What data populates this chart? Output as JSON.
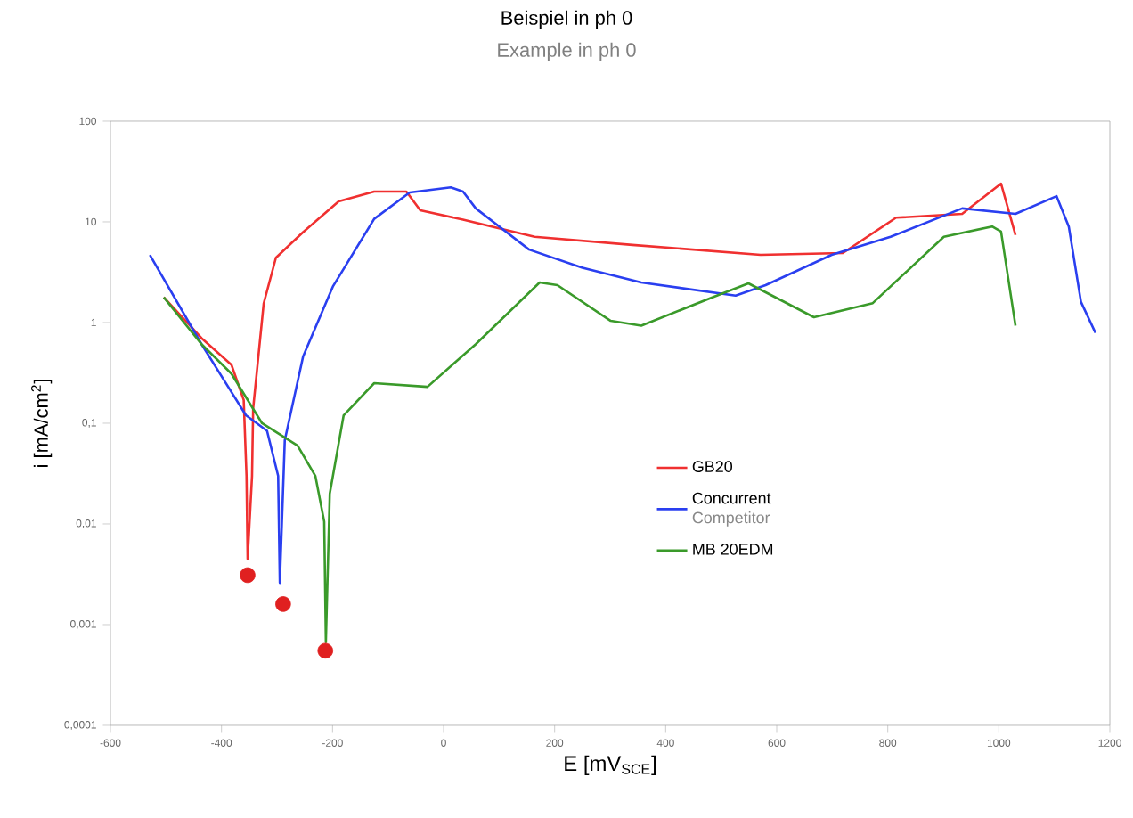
{
  "chart_data": {
    "type": "line",
    "title": "Beispiel in ph 0",
    "subtitle": "Example in ph 0",
    "xlabel": "E [mV$_{SCE}$]",
    "ylabel": "i [mA/cm$^{2}$]",
    "annotations": [
      "Competitor"
    ],
    "xlim": [
      -600,
      1200
    ],
    "xticks": [
      -600,
      -400,
      -200,
      0,
      200,
      400,
      600,
      800,
      1000,
      1200
    ],
    "ylim": [
      0.0001,
      100
    ],
    "yticks": [
      {
        "value": 0.0001,
        "label": "0,0001"
      },
      {
        "value": 0.001,
        "label": "0,001"
      },
      {
        "value": 0.01,
        "label": "0,01"
      },
      {
        "value": 0.1,
        "label": "0,1"
      },
      1,
      10,
      100
    ],
    "log": "y",
    "grid": false,
    "legend": "bottom right",
    "line_style": "solid",
    "series": [
      {
        "name": "GB20",
        "color": "#f03030",
        "x": [
          -504,
          -436,
          -382,
          -360,
          -355,
          -353,
          -345,
          -343,
          -324,
          -302,
          -253,
          -189,
          -125,
          -67,
          -42,
          35,
          164,
          340,
          571,
          719,
          815,
          934,
          1004,
          1030
        ],
        "values": [
          1.78,
          0.7,
          0.38,
          0.17,
          0.03,
          0.0045,
          0.03,
          0.14,
          1.55,
          4.4,
          7.9,
          16,
          20,
          20,
          13,
          10.5,
          7.1,
          5.9,
          4.7,
          4.9,
          11,
          12,
          24,
          7.4
        ]
      },
      {
        "name": "Concurrent",
        "color": "#2a3ff0",
        "x": [
          -529,
          -436,
          -356,
          -318,
          -298,
          -295,
          -286,
          -253,
          -199,
          -125,
          -61,
          13,
          35,
          58,
          154,
          250,
          356,
          526,
          580,
          699,
          805,
          934,
          1030,
          1104,
          1126,
          1148,
          1174
        ],
        "values": [
          4.7,
          0.61,
          0.12,
          0.084,
          0.03,
          0.0026,
          0.068,
          0.46,
          2.3,
          10.7,
          19.6,
          22,
          20,
          13.6,
          5.3,
          3.5,
          2.5,
          1.85,
          2.35,
          4.7,
          7.1,
          13.6,
          12,
          18,
          9.0,
          1.6,
          0.79
        ]
      },
      {
        "name": "MB 20EDM",
        "color": "#3a9a2a",
        "x": [
          -504,
          -436,
          -382,
          -327,
          -263,
          -231,
          -215,
          -212,
          -205,
          -180,
          -125,
          -29,
          58,
          173,
          205,
          301,
          356,
          484,
          549,
          667,
          773,
          901,
          988,
          1004,
          1030
        ],
        "values": [
          1.78,
          0.61,
          0.31,
          0.1,
          0.06,
          0.03,
          0.0105,
          0.00067,
          0.02,
          0.12,
          0.25,
          0.23,
          0.61,
          2.5,
          2.35,
          1.04,
          0.93,
          1.78,
          2.45,
          1.13,
          1.56,
          7.1,
          9.0,
          8.0,
          0.93
        ]
      },
      {
        "type": "scatter",
        "marker": "circle",
        "color": "#e02020",
        "x": [
          -353,
          -289,
          -213
        ],
        "values": [
          0.0031,
          0.0016,
          0.00055
        ]
      }
    ]
  }
}
